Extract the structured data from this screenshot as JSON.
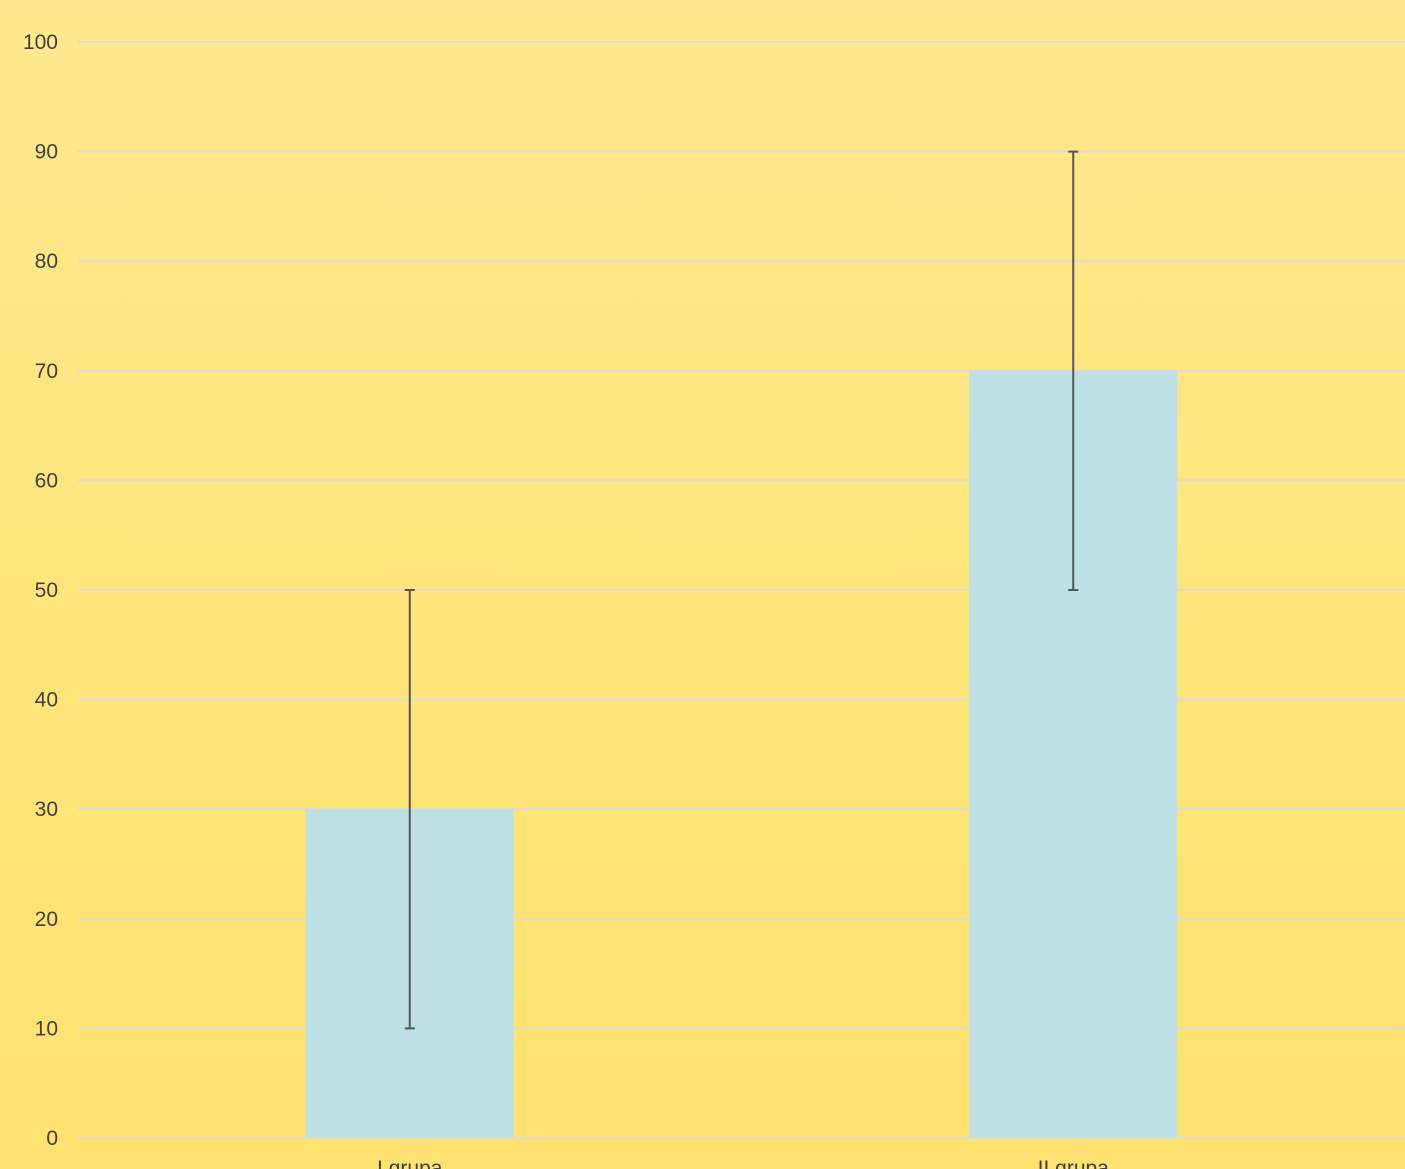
{
  "chart_data": {
    "type": "bar",
    "categories": [
      "I grupa",
      "II grupa"
    ],
    "series": [
      {
        "values": [
          30,
          70
        ],
        "error_low": [
          10,
          50
        ],
        "error_high": [
          50,
          90
        ]
      }
    ],
    "ylim": [
      0,
      100
    ],
    "yticks": [
      0,
      10,
      20,
      30,
      40,
      50,
      60,
      70,
      80,
      90,
      100
    ],
    "grid": true,
    "legend": "none",
    "title": "",
    "xlabel": "",
    "ylabel": ""
  },
  "colors": {
    "bar": "#bce0e3",
    "grid": "#dcdcd0",
    "error_bar": "#555555",
    "text": "#3f3f3f"
  }
}
